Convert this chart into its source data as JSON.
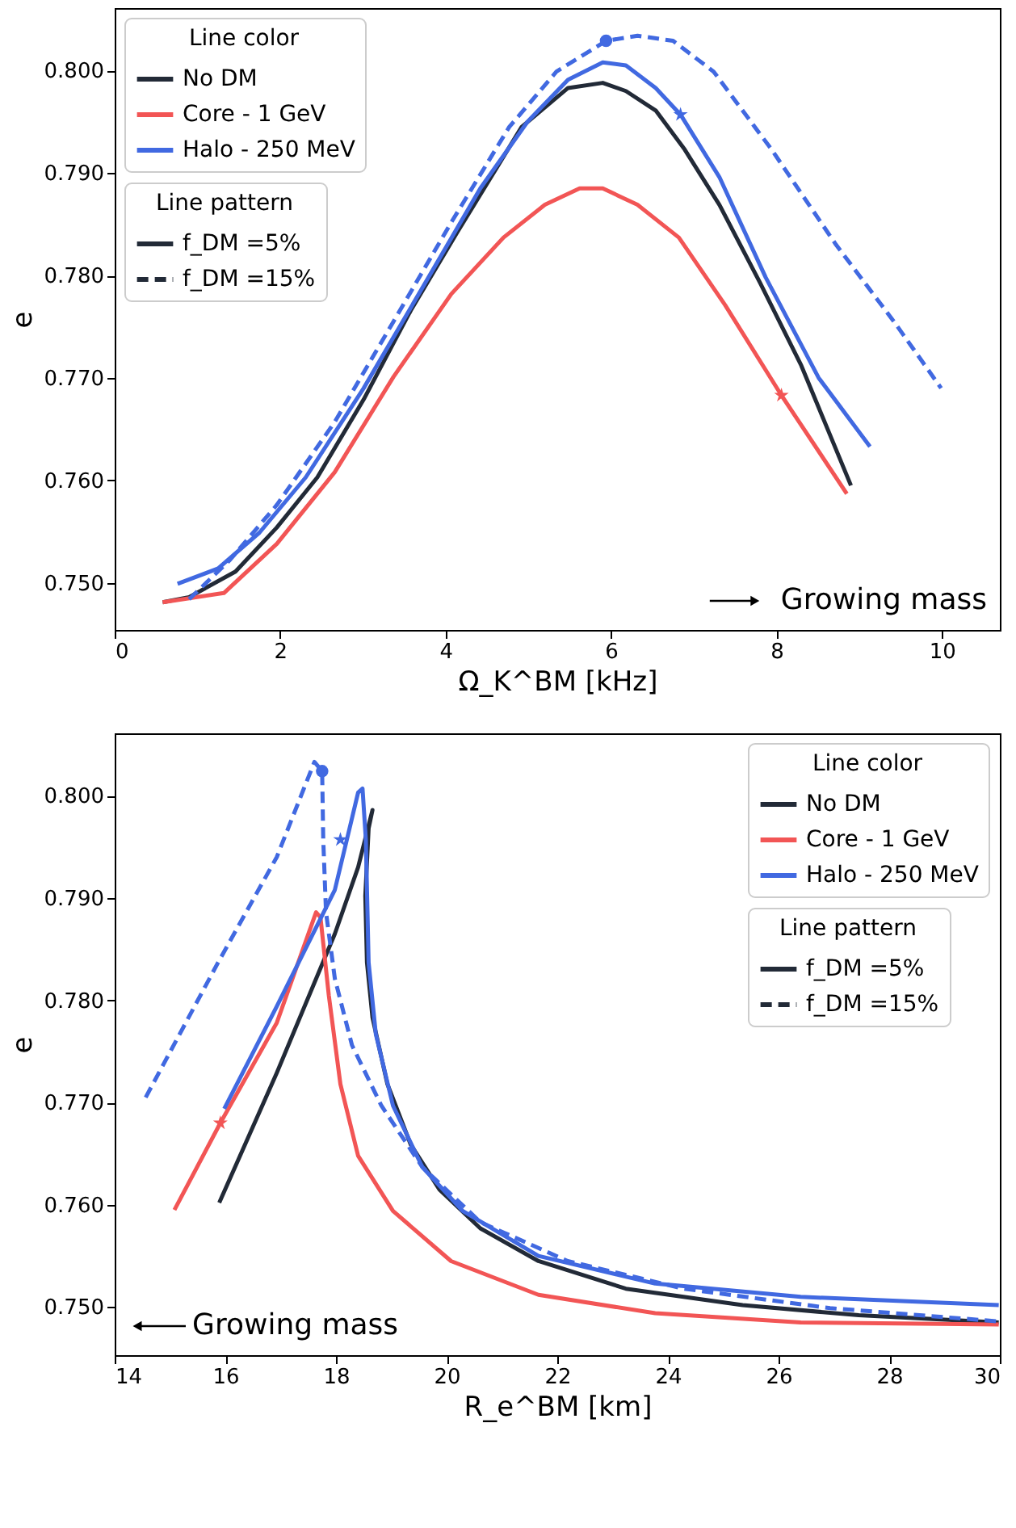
{
  "chart_data": [
    {
      "type": "line",
      "xlabel": "Ω_K^BM  [kHz]",
      "ylabel": "e",
      "xlim": [
        0,
        10.7
      ],
      "ylim": [
        0.7454,
        0.8061
      ],
      "xticks": [
        0,
        2,
        4,
        6,
        8,
        10
      ],
      "yticks": [
        {
          "value": 0.75,
          "label": "0.750"
        },
        {
          "value": 0.76,
          "label": "0.760"
        },
        {
          "value": 0.77,
          "label": "0.770"
        },
        {
          "value": 0.78,
          "label": "0.780"
        },
        {
          "value": 0.79,
          "label": "0.790"
        },
        {
          "value": 0.8,
          "label": "0.800"
        }
      ],
      "legend": "top left",
      "legend_title": "Line color",
      "annotations": [
        "Line pattern",
        "f_DM =5%",
        "f_DM =15%",
        "Growing mass"
      ],
      "series": [
        {
          "name": "No DM",
          "color": "#222a37",
          "x": [
            0.58,
            0.9,
            1.46,
            1.96,
            2.45,
            3.01,
            3.58,
            4.14,
            4.92,
            5.48,
            5.9,
            6.18,
            6.54,
            6.89,
            7.31,
            7.8,
            8.3,
            8.9
          ],
          "values": [
            0.7481,
            0.7486,
            0.7511,
            0.7554,
            0.7603,
            0.7679,
            0.7766,
            0.7842,
            0.7945,
            0.7983,
            0.7988,
            0.798,
            0.7961,
            0.7923,
            0.7869,
            0.7793,
            0.7712,
            0.7595
          ]
        },
        {
          "name": "Core - 1 GeV",
          "color": "#f25555",
          "x": [
            0.58,
            1.32,
            1.96,
            2.66,
            3.37,
            4.07,
            4.7,
            5.2,
            5.62,
            5.9,
            6.32,
            6.82,
            7.38,
            8.06,
            8.85
          ],
          "values": [
            0.7481,
            0.749,
            0.7538,
            0.7608,
            0.7701,
            0.7782,
            0.7837,
            0.7869,
            0.7885,
            0.7885,
            0.7869,
            0.7837,
            0.7771,
            0.7683,
            0.7587
          ]
        },
        {
          "name": "Halo - 250 MeV",
          "color": "#4169e1",
          "x": [
            0.76,
            1.25,
            1.75,
            2.31,
            3.01,
            3.72,
            4.42,
            4.99,
            5.48,
            5.9,
            6.18,
            6.54,
            6.84,
            7.31,
            7.87,
            8.51,
            9.13
          ],
          "values": [
            0.7499,
            0.7514,
            0.7549,
            0.7603,
            0.769,
            0.7788,
            0.7885,
            0.795,
            0.7991,
            0.8008,
            0.8005,
            0.7983,
            0.7957,
            0.7896,
            0.7798,
            0.77,
            0.7633
          ]
        },
        {
          "color": "#4169e1",
          "line_style": "dashed",
          "x": [
            0.9,
            1.39,
            1.96,
            2.66,
            3.37,
            4.07,
            4.77,
            5.34,
            5.94,
            6.32,
            6.75,
            7.24,
            7.94,
            8.72,
            9.42,
            9.99
          ],
          "values": [
            0.7484,
            0.7522,
            0.7576,
            0.7657,
            0.7755,
            0.7852,
            0.7945,
            0.7999,
            0.8029,
            0.8034,
            0.8029,
            0.7999,
            0.7923,
            0.783,
            0.7755,
            0.769
          ]
        },
        {
          "type": "scatter",
          "marker": "circle",
          "color": "#4169e1",
          "x": [
            5.94
          ],
          "values": [
            0.8029
          ]
        },
        {
          "type": "scatter",
          "marker": "star",
          "color": "#4169e1",
          "x": [
            6.84
          ],
          "values": [
            0.7957
          ]
        },
        {
          "type": "scatter",
          "marker": "star",
          "color": "#f25555",
          "x": [
            8.06
          ],
          "values": [
            0.7683
          ]
        }
      ]
    },
    {
      "type": "line",
      "xlabel": "R_e^BM  [km]",
      "ylabel": "e",
      "xlim": [
        14,
        30
      ],
      "ylim": [
        0.7453,
        0.8061
      ],
      "xticks": [
        14,
        16,
        18,
        20,
        22,
        24,
        26,
        28,
        30
      ],
      "yticks": [
        {
          "value": 0.75,
          "label": "0.750"
        },
        {
          "value": 0.76,
          "label": "0.760"
        },
        {
          "value": 0.77,
          "label": "0.770"
        },
        {
          "value": 0.78,
          "label": "0.780"
        },
        {
          "value": 0.79,
          "label": "0.790"
        },
        {
          "value": 0.8,
          "label": "0.800"
        }
      ],
      "legend": "top right",
      "legend_title": "Line color",
      "annotations": [
        "Line pattern",
        "f_DM =5%",
        "f_DM =15%",
        "Growing mass"
      ],
      "series": [
        {
          "name": "No DM",
          "color": "#222a37",
          "x": [
            15.89,
            16.93,
            17.98,
            18.4,
            18.66,
            18.59,
            18.53,
            18.56,
            18.66,
            18.93,
            19.35,
            19.87,
            20.61,
            21.66,
            23.24,
            25.35,
            27.45,
            29.98
          ],
          "values": [
            0.7602,
            0.7729,
            0.7865,
            0.793,
            0.7986,
            0.7968,
            0.7902,
            0.7837,
            0.7783,
            0.7718,
            0.7659,
            0.7615,
            0.7577,
            0.7545,
            0.7518,
            0.7502,
            0.7492,
            0.7485
          ]
        },
        {
          "name": "Core - 1 GeV",
          "color": "#f25555",
          "x": [
            15.08,
            15.91,
            16.93,
            17.64,
            17.72,
            17.87,
            18.08,
            18.4,
            19.03,
            20.08,
            21.66,
            23.77,
            26.4,
            29.98
          ],
          "values": [
            0.7595,
            0.768,
            0.7778,
            0.7886,
            0.7881,
            0.7805,
            0.7718,
            0.7648,
            0.7594,
            0.7545,
            0.7512,
            0.7494,
            0.7485,
            0.7483
          ]
        },
        {
          "name": "Halo - 250 MeV",
          "color": "#4169e1",
          "x": [
            15.98,
            16.93,
            17.98,
            18.4,
            18.48,
            18.54,
            18.59,
            18.72,
            19.03,
            19.56,
            20.29,
            21.66,
            23.77,
            26.4,
            29.98
          ],
          "values": [
            0.7694,
            0.7794,
            0.7908,
            0.8003,
            0.8007,
            0.7957,
            0.7837,
            0.7767,
            0.7697,
            0.7637,
            0.7594,
            0.755,
            0.7523,
            0.751,
            0.7502
          ]
        },
        {
          "color": "#4169e1",
          "line_style": "dashed",
          "x": [
            14.56,
            15.87,
            16.93,
            17.61,
            17.75,
            17.77,
            17.82,
            17.98,
            18.29,
            18.82,
            19.56,
            20.61,
            22.19,
            24.29,
            26.93,
            29.98
          ],
          "values": [
            0.7705,
            0.7837,
            0.794,
            0.8033,
            0.8024,
            0.7957,
            0.7886,
            0.7821,
            0.7756,
            0.7697,
            0.7637,
            0.7583,
            0.7545,
            0.7518,
            0.7499,
            0.7486
          ]
        },
        {
          "type": "scatter",
          "marker": "circle",
          "color": "#4169e1",
          "x": [
            17.75
          ],
          "values": [
            0.8024
          ]
        },
        {
          "type": "scatter",
          "marker": "star",
          "color": "#4169e1",
          "x": [
            18.08
          ],
          "values": [
            0.7957
          ]
        },
        {
          "type": "scatter",
          "marker": "star",
          "color": "#f25555",
          "x": [
            15.91
          ],
          "values": [
            0.768
          ]
        }
      ]
    }
  ]
}
